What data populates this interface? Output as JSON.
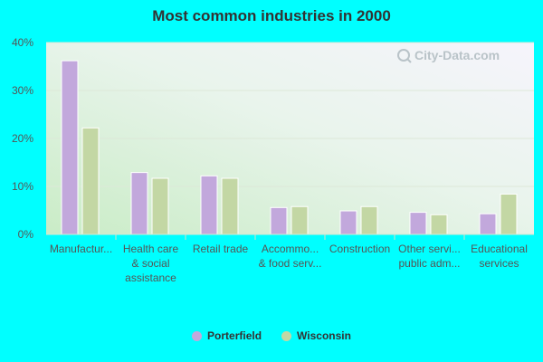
{
  "chart_data": {
    "type": "bar",
    "title": "Most common industries in 2000",
    "categories": [
      "Manufactur...",
      "Health care\n& social\nassistance",
      "Retail trade",
      "Accommo...\n& food serv...",
      "Construction",
      "Other servi...\npublic adm...",
      "Educational\nservices"
    ],
    "series": [
      {
        "name": "Porterfield",
        "values": [
          36.2,
          12.9,
          12.2,
          5.6,
          4.9,
          4.6,
          4.3
        ]
      },
      {
        "name": "Wisconsin",
        "values": [
          22.2,
          11.7,
          11.7,
          5.8,
          5.8,
          4.1,
          8.4
        ]
      }
    ],
    "ylim": [
      0,
      40
    ],
    "yticks": [
      "0%",
      "10%",
      "20%",
      "30%",
      "40%"
    ],
    "ytick_values": [
      0,
      10,
      20,
      30,
      40
    ],
    "xlabel": "",
    "ylabel": "",
    "legend_position": "bottom",
    "grid": true
  },
  "colors": {
    "series": [
      "#c2a8dc",
      "#c3d7a4"
    ],
    "axis_text": "#555555",
    "grid": "#dde8d8"
  },
  "watermark": "City-Data.com"
}
